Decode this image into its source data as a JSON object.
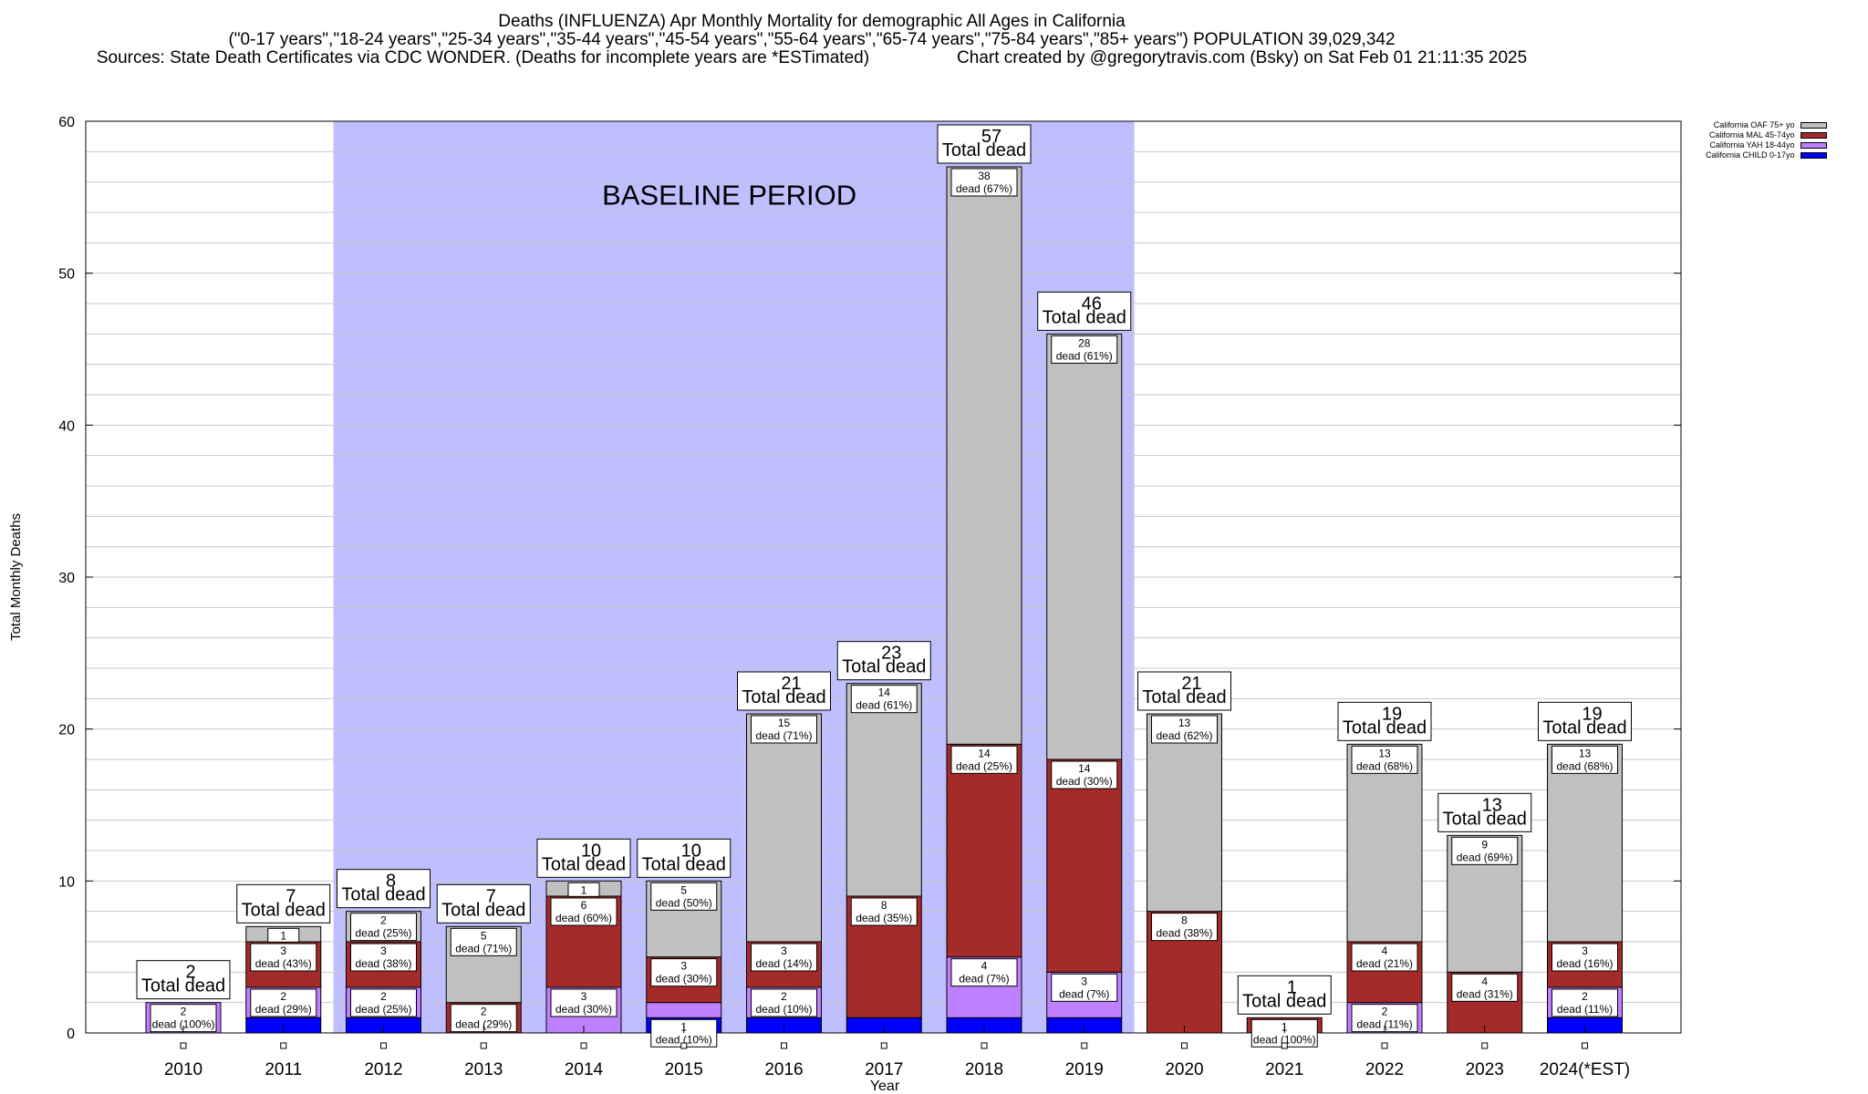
{
  "header": {
    "title": "Deaths (INFLUENZA) Apr Monthly Mortality for demographic All Ages in California",
    "subtitle": "(\"0-17 years\",\"18-24 years\",\"25-34 years\",\"35-44 years\",\"45-54 years\",\"55-64 years\",\"65-74 years\",\"75-84 years\",\"85+ years\") POPULATION 39,029,342",
    "sources": "Sources: State Death Certificates via CDC WONDER. (Deaths for incomplete years are *ESTimated)",
    "credit": "Chart created by @gregorytravis.com (Bsky) on Sat Feb 01 21:11:35 2025"
  },
  "legend": [
    {
      "label": "California OAF 75+ yo",
      "color": "#c0c0c0"
    },
    {
      "label": "California MAL 45-74yo",
      "color": "#a52a2a"
    },
    {
      "label": "California YAH 18-44yo",
      "color": "#bf80ff"
    },
    {
      "label": "California CHILD 0-17yo",
      "color": "#0000ff"
    }
  ],
  "chart_data": {
    "type": "bar",
    "stacked": true,
    "xlabel": "Year",
    "ylabel": "Total Monthly Deaths",
    "ylim": [
      0,
      60
    ],
    "yticks": [
      0,
      10,
      20,
      30,
      40,
      50,
      60
    ],
    "grid": true,
    "legend_position": "top-right",
    "total_label": "Total dead",
    "segment_label": "dead",
    "annotation": {
      "text": "BASELINE PERIOD",
      "from": "2012",
      "to": "2019",
      "color": "#bfbfff"
    },
    "categories": [
      "2010",
      "2011",
      "2012",
      "2013",
      "2014",
      "2015",
      "2016",
      "2017",
      "2018",
      "2019",
      "2020",
      "2021",
      "2022",
      "2023",
      "2024(*EST)"
    ],
    "totals": [
      2,
      7,
      8,
      7,
      10,
      10,
      21,
      23,
      57,
      46,
      21,
      1,
      19,
      13,
      19
    ],
    "series": [
      {
        "name": "California CHILD 0-17yo",
        "color": "#0000ff",
        "values": [
          0,
          1,
          1,
          0,
          0,
          1,
          1,
          1,
          1,
          1,
          0,
          0,
          0,
          0,
          1
        ],
        "labels": [
          "",
          "",
          "",
          "",
          "",
          "1 | dead (10%)",
          "",
          "",
          "",
          "",
          "",
          "",
          "",
          "",
          ""
        ]
      },
      {
        "name": "California YAH 18-44yo",
        "color": "#bf80ff",
        "values": [
          2,
          2,
          2,
          0,
          3,
          1,
          2,
          0,
          4,
          3,
          0,
          0,
          2,
          0,
          2
        ],
        "labels": [
          "2 | dead (100%)",
          "2 | dead (29%)",
          "2 | dead (25%)",
          "",
          "3 | dead (30%)",
          "",
          "2 | dead (10%)",
          "",
          "4 | dead (7%)",
          "3 | dead (7%)",
          "",
          "",
          "2 | dead (11%)",
          "",
          "2 | dead (11%)"
        ]
      },
      {
        "name": "California MAL 45-74yo",
        "color": "#a52a2a",
        "values": [
          0,
          3,
          3,
          2,
          6,
          3,
          3,
          8,
          14,
          14,
          8,
          1,
          4,
          4,
          3
        ],
        "labels": [
          "",
          "3 | dead (43%)",
          "3 | dead (38%)",
          "2 | dead (29%)",
          "6 | dead (60%)",
          "3 | dead (30%)",
          "3 | dead (14%)",
          "8 | dead (35%)",
          "14 | dead (25%)",
          "14 | dead (30%)",
          "8 | dead (38%)",
          "1 | dead (100%)",
          "4 | dead (21%)",
          "4 | dead (31%)",
          "3 | dead (16%)"
        ]
      },
      {
        "name": "California OAF 75+ yo",
        "color": "#c0c0c0",
        "values": [
          0,
          1,
          2,
          5,
          1,
          5,
          15,
          14,
          38,
          28,
          13,
          0,
          13,
          9,
          13
        ],
        "labels": [
          "",
          "1",
          "2 | dead (25%)",
          "5 | dead (71%)",
          "1",
          "5 | dead (50%)",
          "15 | dead (71%)",
          "14 | dead (61%)",
          "38 | dead (67%)",
          "28 | dead (61%)",
          "13 | dead (62%)",
          "",
          "13 | dead (68%)",
          "9 | dead (69%)",
          "13 | dead (68%)"
        ]
      }
    ]
  }
}
